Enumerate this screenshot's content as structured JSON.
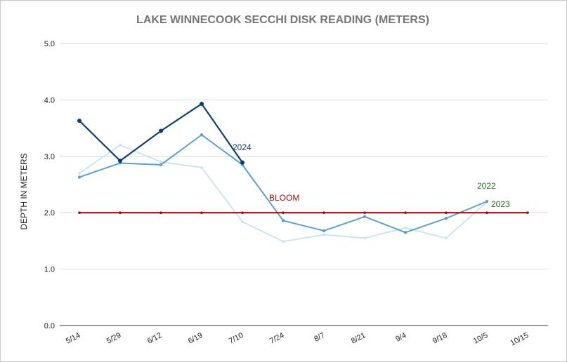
{
  "chart_data": {
    "type": "line",
    "title": "LAKE WINNECOOK SECCHI DISK READING (METERS)",
    "xlabel": "",
    "ylabel": "DEPTH IN METERS",
    "ylim": [
      0,
      5
    ],
    "yticks": [
      "0.0",
      "1.0",
      "2.0",
      "3.0",
      "4.0",
      "5.0"
    ],
    "categories": [
      "5/14",
      "5/29",
      "6/12",
      "6/19",
      "7/10",
      "7/24",
      "8/7",
      "8/21",
      "9/4",
      "9/18",
      "10/5",
      "10/15"
    ],
    "grid": "horizontal",
    "series": [
      {
        "name": "2023",
        "color": "#c9e2f3",
        "values": [
          2.7,
          3.2,
          2.9,
          2.8,
          1.84,
          1.49,
          1.61,
          1.55,
          1.73,
          1.55,
          2.19,
          null
        ]
      },
      {
        "name": "2022",
        "color": "#5b9fd9",
        "values": [
          2.63,
          2.88,
          2.85,
          3.38,
          2.85,
          1.86,
          1.68,
          1.93,
          1.65,
          1.9,
          2.2,
          null
        ]
      },
      {
        "name": "2024",
        "color": "#0b3f71",
        "values": [
          3.63,
          2.92,
          3.45,
          3.93,
          2.89,
          null,
          null,
          null,
          null,
          null,
          null,
          null
        ]
      },
      {
        "name": "BLOOM",
        "color": "#a30d12",
        "values": [
          2,
          2,
          2,
          2,
          2,
          2,
          2,
          2,
          2,
          2,
          2,
          2
        ]
      }
    ],
    "annotations": [
      {
        "text": "2024",
        "color": "#0b3f71",
        "series": "2024"
      },
      {
        "text": "BLOOM",
        "color": "#a30d12",
        "series": "BLOOM"
      },
      {
        "text": "2022",
        "color": "#2e6b1f",
        "series": "2022"
      },
      {
        "text": "2023",
        "color": "#2e6b1f",
        "series": "2023"
      }
    ]
  }
}
